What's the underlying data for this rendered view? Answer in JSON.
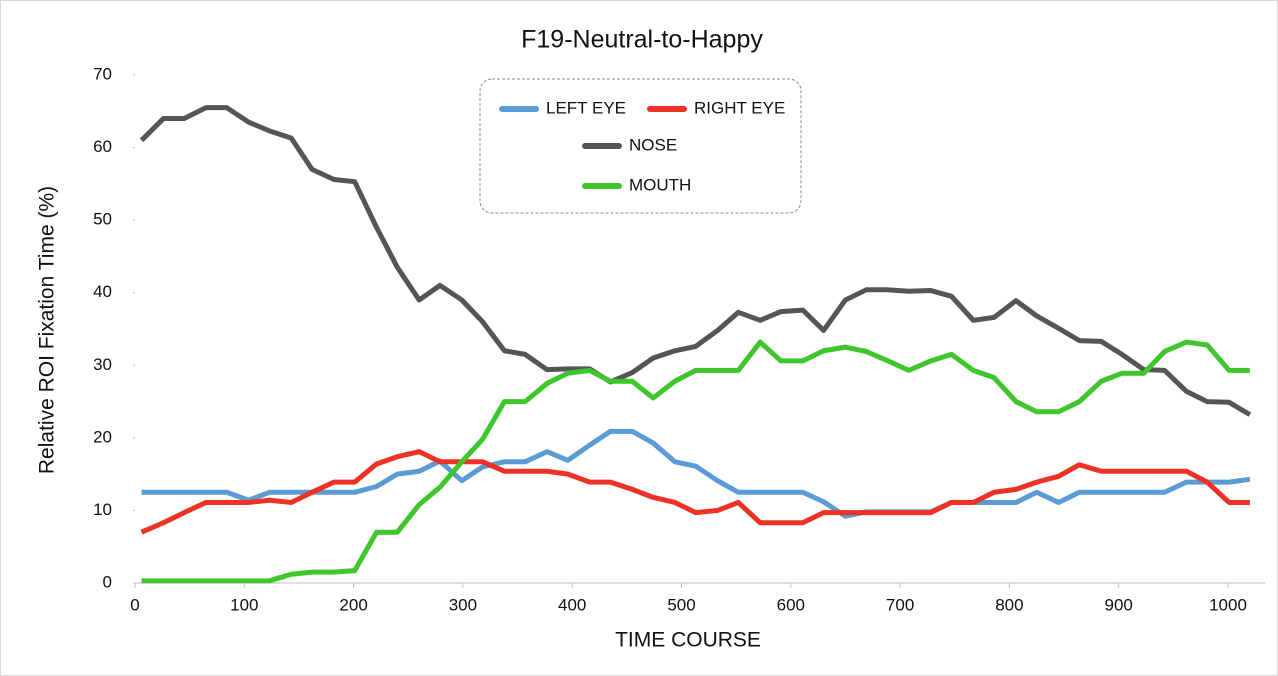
{
  "chart_data": {
    "type": "line",
    "title": "F19-Neutral-to-Happy",
    "xlabel": "TIME  COURSE",
    "ylabel": "Relative  ROI  Fixation  Time  (%)",
    "x": [
      6,
      26,
      45,
      65,
      84,
      104,
      123,
      143,
      162,
      182,
      201,
      221,
      240,
      260,
      279,
      299,
      318,
      338,
      357,
      377,
      396,
      416,
      435,
      455,
      474,
      494,
      513,
      533,
      552,
      572,
      591,
      611,
      630,
      650,
      669,
      689,
      708,
      728,
      747,
      767,
      786,
      806,
      825,
      845,
      864,
      884,
      903,
      923,
      942,
      962,
      981,
      1001,
      1020
    ],
    "series": [
      {
        "name": "LEFT EYE",
        "color": "#5b9bd5",
        "values": [
          12.5,
          12.5,
          12.5,
          12.5,
          12.5,
          11.4,
          12.5,
          12.5,
          12.5,
          12.5,
          12.5,
          13.3,
          15,
          15.4,
          16.8,
          14.1,
          16,
          16.7,
          16.7,
          18.1,
          16.9,
          19,
          20.9,
          20.9,
          19.3,
          16.7,
          16.1,
          14.1,
          12.5,
          12.5,
          12.5,
          12.5,
          11.2,
          9.2,
          9.8,
          9.8,
          9.8,
          9.8,
          11.1,
          11.1,
          11.1,
          11.1,
          12.5,
          11.1,
          12.5,
          12.5,
          12.5,
          12.5,
          12.5,
          13.9,
          13.9,
          13.9,
          14.3
        ]
      },
      {
        "name": "RIGHT EYE",
        "color": "#ee3124",
        "values": [
          7,
          8.3,
          9.7,
          11.1,
          11.1,
          11.1,
          11.4,
          11.1,
          12.5,
          13.9,
          13.9,
          16.4,
          17.4,
          18.1,
          16.7,
          16.7,
          16.7,
          15.4,
          15.4,
          15.4,
          15,
          13.9,
          13.9,
          12.9,
          11.8,
          11.1,
          9.7,
          10,
          11.1,
          8.3,
          8.3,
          8.3,
          9.7,
          9.7,
          9.7,
          9.7,
          9.7,
          9.7,
          11.1,
          11.1,
          12.5,
          12.9,
          13.9,
          14.7,
          16.3,
          15.4,
          15.4,
          15.4,
          15.4,
          15.4,
          13.9,
          11.1,
          11.1
        ]
      },
      {
        "name": "NOSE",
        "color": "#555555",
        "values": [
          61,
          64,
          64,
          65.5,
          65.5,
          63.5,
          62.3,
          61.3,
          57,
          55.6,
          55.3,
          49,
          43.5,
          39,
          41,
          39,
          36,
          32,
          31.5,
          29.4,
          29.5,
          29.5,
          27.7,
          29,
          31,
          32,
          32.6,
          34.8,
          37.3,
          36.2,
          37.4,
          37.6,
          34.8,
          39,
          40.4,
          40.4,
          40.2,
          40.3,
          39.5,
          36.2,
          36.6,
          38.9,
          36.8,
          35.1,
          33.4,
          33.3,
          31.5,
          29.4,
          29.3,
          26.4,
          25,
          24.9,
          23.2
        ]
      },
      {
        "name": "MOUTH",
        "color": "#3ec62c",
        "values": [
          0.3,
          0.3,
          0.3,
          0.3,
          0.3,
          0.3,
          0.3,
          1.2,
          1.5,
          1.5,
          1.7,
          7,
          7,
          10.8,
          13.2,
          16.7,
          19.8,
          25,
          25,
          27.5,
          28.9,
          29.3,
          27.8,
          27.8,
          25.5,
          27.8,
          29.3,
          29.3,
          29.3,
          33.2,
          30.6,
          30.6,
          32,
          32.5,
          31.9,
          30.6,
          29.3,
          30.6,
          31.5,
          29.3,
          28.3,
          25,
          23.6,
          23.6,
          25,
          27.8,
          28.9,
          28.9,
          31.9,
          33.2,
          32.8,
          29.3,
          29.3
        ]
      }
    ],
    "xlim": [
      0,
      1034
    ],
    "ylim": [
      0,
      70
    ],
    "xticks": [
      0,
      100,
      200,
      300,
      400,
      500,
      600,
      700,
      800,
      900,
      1000
    ],
    "yticks": [
      0,
      10,
      20,
      30,
      40,
      50,
      60,
      70
    ],
    "grid": false
  }
}
